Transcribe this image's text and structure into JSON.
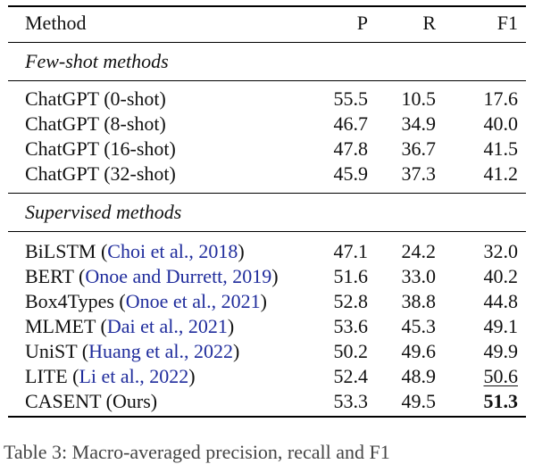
{
  "table": {
    "headers": {
      "method": "Method",
      "p": "P",
      "r": "R",
      "f1": "F1"
    },
    "sections": [
      {
        "title": "Few-shot methods",
        "rows": [
          {
            "method": "ChatGPT (0-shot)",
            "cite": "",
            "suffix": "",
            "p": "55.5",
            "r": "10.5",
            "f1": "17.6"
          },
          {
            "method": "ChatGPT (8-shot)",
            "cite": "",
            "suffix": "",
            "p": "46.7",
            "r": "34.9",
            "f1": "40.0"
          },
          {
            "method": "ChatGPT (16-shot)",
            "cite": "",
            "suffix": "",
            "p": "47.8",
            "r": "36.7",
            "f1": "41.5"
          },
          {
            "method": "ChatGPT (32-shot)",
            "cite": "",
            "suffix": "",
            "p": "45.9",
            "r": "37.3",
            "f1": "41.2"
          }
        ]
      },
      {
        "title": "Supervised methods",
        "rows": [
          {
            "method": "BiLSTM (",
            "cite": "Choi et al., 2018",
            "suffix": ")",
            "p": "47.1",
            "r": "24.2",
            "f1": "32.0"
          },
          {
            "method": "BERT (",
            "cite": "Onoe and Durrett, 2019",
            "suffix": ")",
            "p": "51.6",
            "r": "33.0",
            "f1": "40.2"
          },
          {
            "method": "Box4Types (",
            "cite": "Onoe et al., 2021",
            "suffix": ")",
            "p": "52.8",
            "r": "38.8",
            "f1": "44.8"
          },
          {
            "method": "MLMET (",
            "cite": "Dai et al., 2021",
            "suffix": ")",
            "p": "53.6",
            "r": "45.3",
            "f1": "49.1"
          },
          {
            "method": "UniST (",
            "cite": "Huang et al., 2022",
            "suffix": ")",
            "p": "50.2",
            "r": "49.6",
            "f1": "49.9"
          },
          {
            "method": "LITE (",
            "cite": "Li et al., 2022",
            "suffix": ")",
            "p": "52.4",
            "r": "48.9",
            "f1": "50.6"
          },
          {
            "method": "CASENT (Ours)",
            "cite": "",
            "suffix": "",
            "p": "53.3",
            "r": "49.5",
            "f1": "51.3"
          }
        ]
      }
    ]
  },
  "caption": "Table 3: Macro-averaged precision, recall and F1",
  "colors": {
    "citation": "#1f2c9c"
  }
}
